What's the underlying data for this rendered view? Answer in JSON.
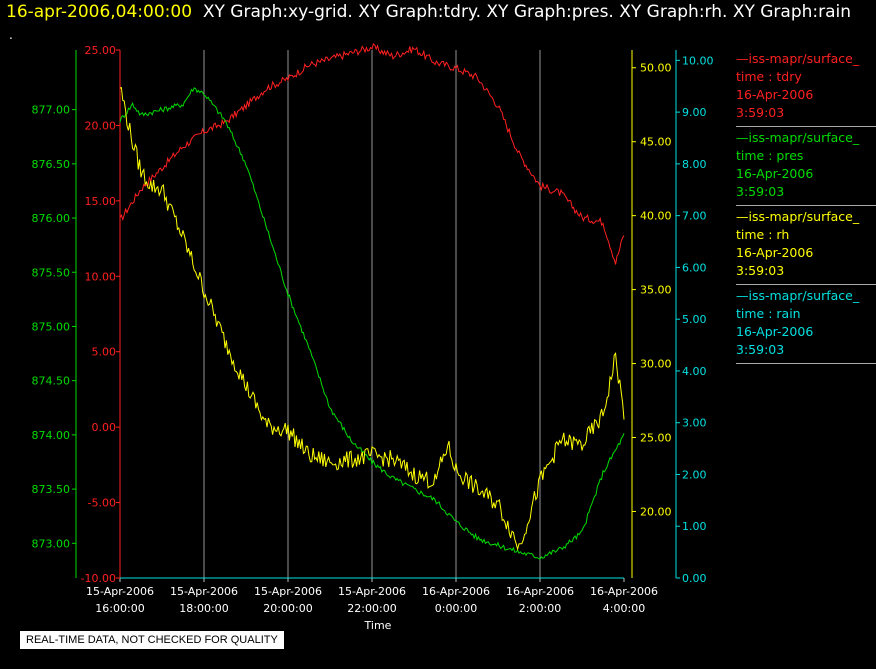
{
  "header": {
    "timestamp": "16-apr-2006,04:00:00",
    "graphs": "XY Graph:xy-grid.  XY Graph:tdry.  XY Graph:pres.  XY Graph:rh.  XY Graph:rain",
    "dot": "."
  },
  "legend": [
    {
      "line": "—iss-mapr/surface_",
      "var": "time : tdry",
      "date": "16-Apr-2006",
      "time": "3:59:03",
      "color": "#ff2020"
    },
    {
      "line": "—iss-mapr/surface_",
      "var": "time : pres",
      "date": "16-Apr-2006",
      "time": "3:59:03",
      "color": "#00dd00"
    },
    {
      "line": "—iss-mapr/surface_",
      "var": "time : rh",
      "date": "16-Apr-2006",
      "time": "3:59:03",
      "color": "#ffff00"
    },
    {
      "line": "—iss-mapr/surface_",
      "var": "time : rain",
      "date": "16-Apr-2006",
      "time": "3:59:03",
      "color": "#00e0e0"
    }
  ],
  "footer": {
    "note": "REAL-TIME DATA, NOT CHECKED FOR QUALITY"
  },
  "chart_data": {
    "type": "line",
    "xlabel": "Time",
    "x_ticks": [
      [
        "15-Apr-2006",
        "16:00:00"
      ],
      [
        "15-Apr-2006",
        "18:00:00"
      ],
      [
        "15-Apr-2006",
        "20:00:00"
      ],
      [
        "15-Apr-2006",
        "22:00:00"
      ],
      [
        "16-Apr-2006",
        "0:00:00"
      ],
      [
        "16-Apr-2006",
        "2:00:00"
      ],
      [
        "16-Apr-2006",
        "4:00:00"
      ]
    ],
    "xlim_hours_from_1600": [
      0,
      12
    ],
    "axes": {
      "tdry": {
        "ylim": [
          -10,
          25
        ],
        "ticks": [
          "-10.00",
          "-5.00",
          "0.00",
          "5.00",
          "10.00",
          "15.00",
          "20.00",
          "25.00"
        ],
        "color": "#ff2020"
      },
      "pres": {
        "ylim": [
          872.68,
          877.55
        ],
        "ticks": [
          "873.00",
          "873.50",
          "874.00",
          "874.50",
          "875.00",
          "875.50",
          "876.00",
          "876.50",
          "877.00"
        ],
        "color": "#00dd00"
      },
      "rh": {
        "ylim": [
          15.5,
          51.2
        ],
        "ticks": [
          "20.00",
          "25.00",
          "30.00",
          "35.00",
          "40.00",
          "45.00",
          "50.00"
        ],
        "color": "#ffff00"
      },
      "rain": {
        "ylim": [
          0,
          10.2
        ],
        "ticks": [
          "0.00",
          "1.00",
          "2.00",
          "3.00",
          "4.00",
          "5.00",
          "6.00",
          "7.00",
          "8.00",
          "9.00",
          "10.00"
        ],
        "color": "#00e0e0"
      }
    },
    "series": [
      {
        "name": "tdry",
        "color": "#ff2020",
        "x": [
          0,
          0.5,
          1,
          1.5,
          2,
          2.5,
          3,
          3.5,
          4,
          4.5,
          5,
          5.5,
          6,
          6.5,
          7,
          7.5,
          8,
          8.5,
          9,
          9.5,
          10,
          10.5,
          11,
          11.5,
          11.8,
          12
        ],
        "y": [
          13.7,
          15.8,
          17.2,
          18.6,
          19.6,
          20.2,
          21.3,
          22.5,
          23.1,
          24.0,
          24.4,
          24.8,
          25.2,
          24.6,
          25.1,
          24.2,
          23.8,
          23.2,
          21.3,
          18.1,
          16.0,
          15.5,
          13.9,
          13.6,
          10.9,
          12.8
        ]
      },
      {
        "name": "pres",
        "color": "#00dd00",
        "x": [
          0,
          0.3,
          0.5,
          1,
          1.5,
          1.75,
          2,
          2.5,
          3,
          3.5,
          4,
          4.5,
          5,
          5.5,
          6,
          6.5,
          7,
          7.5,
          8,
          8.5,
          9,
          9.5,
          10,
          10.5,
          11,
          11.5,
          12
        ],
        "y": [
          876.9,
          877.05,
          876.95,
          877.0,
          877.05,
          877.2,
          877.15,
          876.9,
          876.5,
          875.9,
          875.3,
          874.8,
          874.25,
          873.95,
          873.75,
          873.6,
          873.5,
          873.4,
          873.2,
          873.05,
          872.98,
          872.92,
          872.87,
          872.95,
          873.1,
          873.65,
          874.0
        ]
      },
      {
        "name": "rh",
        "color": "#ffff00",
        "x": [
          0,
          0.25,
          0.5,
          0.75,
          1,
          1.5,
          2,
          2.5,
          3,
          3.5,
          4,
          4.5,
          5,
          5.5,
          6,
          6.5,
          7,
          7.5,
          7.8,
          8,
          8.5,
          9,
          9.5,
          10,
          10.5,
          11,
          11.5,
          11.8,
          12
        ],
        "y": [
          48.8,
          45.5,
          43.0,
          42.0,
          41.8,
          38.5,
          35.0,
          31.5,
          28.5,
          25.8,
          25.5,
          23.8,
          23.3,
          23.5,
          23.8,
          23.5,
          22.5,
          22.0,
          24.5,
          22.8,
          21.5,
          20.5,
          17.6,
          22.0,
          24.8,
          24.5,
          26.5,
          30.5,
          26.5
        ]
      },
      {
        "name": "rain",
        "color": "#00e0e0",
        "x": [
          0,
          12
        ],
        "y": [
          0,
          0
        ]
      }
    ]
  }
}
